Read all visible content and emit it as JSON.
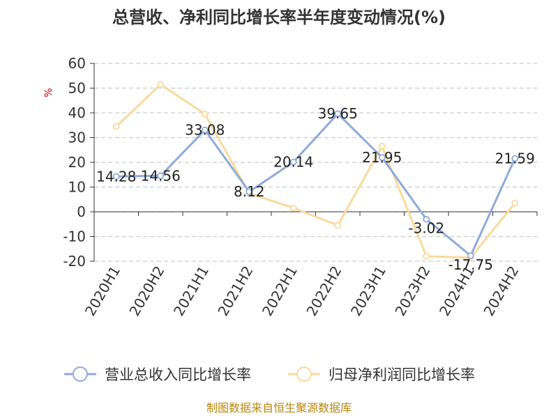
{
  "chart_data": {
    "type": "line",
    "title": "总营收、净利同比增长率半年度变动情况(%)",
    "ylabel": "%",
    "categories": [
      "2020H1",
      "2020H2",
      "2021H1",
      "2021H2",
      "2022H1",
      "2022H2",
      "2023H1",
      "2023H2",
      "2024H1",
      "2024H2"
    ],
    "ylim": [
      -20,
      60
    ],
    "yticks": [
      60,
      50,
      40,
      30,
      20,
      10,
      0,
      -10,
      -20
    ],
    "ytick_labels": [
      "60",
      "50",
      "40",
      "30",
      "20",
      "10",
      "0",
      "-10",
      "-20"
    ],
    "grid": true,
    "legend_position": "bottom",
    "series": [
      {
        "name": "营业总收入同比增长率",
        "color": "#8eaadb",
        "values": [
          14.28,
          14.56,
          33.08,
          8.12,
          20.14,
          39.65,
          21.95,
          -3.02,
          -17.75,
          21.59
        ],
        "labels": [
          "14.28",
          "14.56",
          "33.08",
          "8.12",
          "20.14",
          "39.65",
          "21.95",
          "-3.02",
          "-17.75",
          "21.59"
        ]
      },
      {
        "name": "归母净利润同比增长率",
        "color": "#fbd99a",
        "values": [
          34.5,
          51.5,
          39.5,
          7.5,
          1.5,
          -5.5,
          26.5,
          -18.0,
          -18.5,
          3.5
        ]
      }
    ]
  },
  "source": "制图数据来自恒生聚源数据库"
}
